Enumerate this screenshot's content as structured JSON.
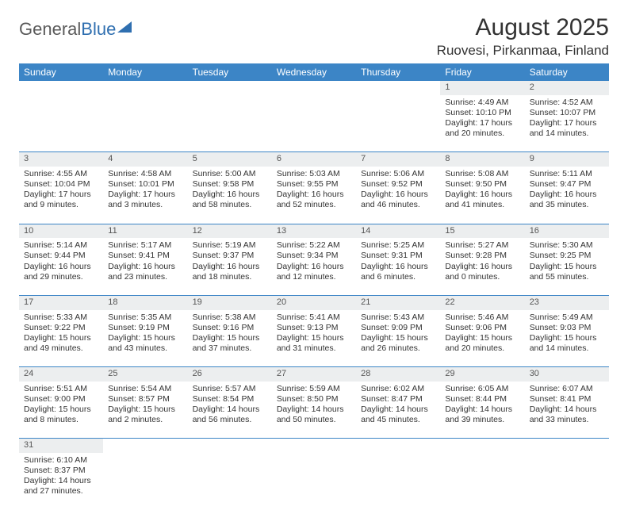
{
  "logo": {
    "part1": "General",
    "part2": "Blue"
  },
  "title": "August 2025",
  "location": "Ruovesi, Pirkanmaa, Finland",
  "colors": {
    "header_bg": "#3c85c6",
    "header_text": "#ffffff",
    "daynum_bg": "#eceeef",
    "row_divider": "#3c85c6",
    "logo_gray": "#5a5a5a",
    "logo_blue": "#2f6fb0",
    "text": "#333333"
  },
  "weekdays": [
    "Sunday",
    "Monday",
    "Tuesday",
    "Wednesday",
    "Thursday",
    "Friday",
    "Saturday"
  ],
  "weeks": [
    {
      "nums": [
        "",
        "",
        "",
        "",
        "",
        "1",
        "2"
      ],
      "cells": [
        null,
        null,
        null,
        null,
        null,
        {
          "sr": "4:49 AM",
          "ss": "10:10 PM",
          "dl": "17 hours and 20 minutes."
        },
        {
          "sr": "4:52 AM",
          "ss": "10:07 PM",
          "dl": "17 hours and 14 minutes."
        }
      ]
    },
    {
      "nums": [
        "3",
        "4",
        "5",
        "6",
        "7",
        "8",
        "9"
      ],
      "cells": [
        {
          "sr": "4:55 AM",
          "ss": "10:04 PM",
          "dl": "17 hours and 9 minutes."
        },
        {
          "sr": "4:58 AM",
          "ss": "10:01 PM",
          "dl": "17 hours and 3 minutes."
        },
        {
          "sr": "5:00 AM",
          "ss": "9:58 PM",
          "dl": "16 hours and 58 minutes."
        },
        {
          "sr": "5:03 AM",
          "ss": "9:55 PM",
          "dl": "16 hours and 52 minutes."
        },
        {
          "sr": "5:06 AM",
          "ss": "9:52 PM",
          "dl": "16 hours and 46 minutes."
        },
        {
          "sr": "5:08 AM",
          "ss": "9:50 PM",
          "dl": "16 hours and 41 minutes."
        },
        {
          "sr": "5:11 AM",
          "ss": "9:47 PM",
          "dl": "16 hours and 35 minutes."
        }
      ]
    },
    {
      "nums": [
        "10",
        "11",
        "12",
        "13",
        "14",
        "15",
        "16"
      ],
      "cells": [
        {
          "sr": "5:14 AM",
          "ss": "9:44 PM",
          "dl": "16 hours and 29 minutes."
        },
        {
          "sr": "5:17 AM",
          "ss": "9:41 PM",
          "dl": "16 hours and 23 minutes."
        },
        {
          "sr": "5:19 AM",
          "ss": "9:37 PM",
          "dl": "16 hours and 18 minutes."
        },
        {
          "sr": "5:22 AM",
          "ss": "9:34 PM",
          "dl": "16 hours and 12 minutes."
        },
        {
          "sr": "5:25 AM",
          "ss": "9:31 PM",
          "dl": "16 hours and 6 minutes."
        },
        {
          "sr": "5:27 AM",
          "ss": "9:28 PM",
          "dl": "16 hours and 0 minutes."
        },
        {
          "sr": "5:30 AM",
          "ss": "9:25 PM",
          "dl": "15 hours and 55 minutes."
        }
      ]
    },
    {
      "nums": [
        "17",
        "18",
        "19",
        "20",
        "21",
        "22",
        "23"
      ],
      "cells": [
        {
          "sr": "5:33 AM",
          "ss": "9:22 PM",
          "dl": "15 hours and 49 minutes."
        },
        {
          "sr": "5:35 AM",
          "ss": "9:19 PM",
          "dl": "15 hours and 43 minutes."
        },
        {
          "sr": "5:38 AM",
          "ss": "9:16 PM",
          "dl": "15 hours and 37 minutes."
        },
        {
          "sr": "5:41 AM",
          "ss": "9:13 PM",
          "dl": "15 hours and 31 minutes."
        },
        {
          "sr": "5:43 AM",
          "ss": "9:09 PM",
          "dl": "15 hours and 26 minutes."
        },
        {
          "sr": "5:46 AM",
          "ss": "9:06 PM",
          "dl": "15 hours and 20 minutes."
        },
        {
          "sr": "5:49 AM",
          "ss": "9:03 PM",
          "dl": "15 hours and 14 minutes."
        }
      ]
    },
    {
      "nums": [
        "24",
        "25",
        "26",
        "27",
        "28",
        "29",
        "30"
      ],
      "cells": [
        {
          "sr": "5:51 AM",
          "ss": "9:00 PM",
          "dl": "15 hours and 8 minutes."
        },
        {
          "sr": "5:54 AM",
          "ss": "8:57 PM",
          "dl": "15 hours and 2 minutes."
        },
        {
          "sr": "5:57 AM",
          "ss": "8:54 PM",
          "dl": "14 hours and 56 minutes."
        },
        {
          "sr": "5:59 AM",
          "ss": "8:50 PM",
          "dl": "14 hours and 50 minutes."
        },
        {
          "sr": "6:02 AM",
          "ss": "8:47 PM",
          "dl": "14 hours and 45 minutes."
        },
        {
          "sr": "6:05 AM",
          "ss": "8:44 PM",
          "dl": "14 hours and 39 minutes."
        },
        {
          "sr": "6:07 AM",
          "ss": "8:41 PM",
          "dl": "14 hours and 33 minutes."
        }
      ]
    },
    {
      "nums": [
        "31",
        "",
        "",
        "",
        "",
        "",
        ""
      ],
      "cells": [
        {
          "sr": "6:10 AM",
          "ss": "8:37 PM",
          "dl": "14 hours and 27 minutes."
        },
        null,
        null,
        null,
        null,
        null,
        null
      ]
    }
  ],
  "labels": {
    "sunrise": "Sunrise: ",
    "sunset": "Sunset: ",
    "daylight": "Daylight: "
  }
}
